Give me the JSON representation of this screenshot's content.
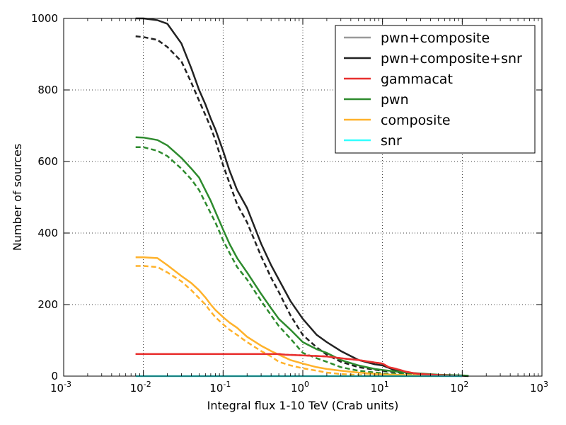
{
  "chart_data": {
    "type": "line",
    "xlabel": "Integral flux 1-10 TeV (Crab units)",
    "ylabel": "Number of sources",
    "xscale": "log",
    "xlim": [
      0.001,
      1000
    ],
    "ylim": [
      0,
      1000
    ],
    "xticks": [
      {
        "value": 0.001,
        "base": "10",
        "exp": "-3"
      },
      {
        "value": 0.01,
        "base": "10",
        "exp": "-2"
      },
      {
        "value": 0.1,
        "base": "10",
        "exp": "-1"
      },
      {
        "value": 1,
        "base": "10",
        "exp": "0"
      },
      {
        "value": 10,
        "base": "10",
        "exp": "1"
      },
      {
        "value": 100,
        "base": "10",
        "exp": "2"
      },
      {
        "value": 1000,
        "base": "10",
        "exp": "3"
      }
    ],
    "yticks": [
      "0",
      "200",
      "400",
      "600",
      "800",
      "1000"
    ],
    "grid": true,
    "legend_position": "top-right",
    "legend": [
      {
        "label": "pwn+composite",
        "color": "#999999"
      },
      {
        "label": "pwn+composite+snr",
        "color": "#222222"
      },
      {
        "label": "gammacat",
        "color": "#e8302f"
      },
      {
        "label": "pwn",
        "color": "#2e8b2e"
      },
      {
        "label": "composite",
        "color": "#ffb22b"
      },
      {
        "label": "snr",
        "color": "#33ffff"
      }
    ],
    "series": [
      {
        "name": "pwn+composite+snr",
        "style": "solid",
        "color": "#222222",
        "x": [
          0.008,
          0.01,
          0.015,
          0.02,
          0.03,
          0.04,
          0.05,
          0.06,
          0.07,
          0.08,
          0.1,
          0.12,
          0.15,
          0.2,
          0.3,
          0.4,
          0.5,
          0.7,
          1,
          1.5,
          2,
          3,
          5,
          8,
          10,
          15,
          20,
          30,
          50,
          80,
          100,
          120
        ],
        "y": [
          1000,
          1000,
          995,
          985,
          930,
          860,
          800,
          760,
          720,
          690,
          630,
          575,
          520,
          470,
          370,
          310,
          270,
          210,
          160,
          115,
          95,
          70,
          45,
          33,
          30,
          15,
          10,
          6,
          3,
          2,
          1,
          0
        ]
      },
      {
        "name": "pwn+composite+snr",
        "style": "dashed",
        "color": "#222222",
        "x": [
          0.008,
          0.01,
          0.015,
          0.02,
          0.03,
          0.04,
          0.05,
          0.06,
          0.07,
          0.08,
          0.1,
          0.12,
          0.15,
          0.2,
          0.3,
          0.4,
          0.5,
          0.7,
          1,
          1.5,
          2,
          3,
          5,
          8,
          10,
          20,
          50,
          100
        ],
        "y": [
          950,
          948,
          940,
          920,
          880,
          820,
          770,
          730,
          695,
          660,
          590,
          540,
          480,
          430,
          335,
          275,
          235,
          170,
          115,
          80,
          60,
          40,
          25,
          18,
          15,
          8,
          3,
          1
        ]
      },
      {
        "name": "pwn",
        "style": "solid",
        "color": "#2e8b2e",
        "x": [
          0.008,
          0.01,
          0.015,
          0.02,
          0.03,
          0.04,
          0.05,
          0.06,
          0.07,
          0.08,
          0.1,
          0.12,
          0.15,
          0.2,
          0.3,
          0.4,
          0.5,
          0.7,
          1,
          1.5,
          2,
          3,
          5,
          8,
          10,
          20,
          50,
          100,
          120
        ],
        "y": [
          668,
          667,
          660,
          645,
          610,
          580,
          555,
          520,
          490,
          460,
          410,
          370,
          330,
          290,
          230,
          190,
          160,
          130,
          95,
          75,
          65,
          45,
          30,
          20,
          17,
          10,
          4,
          2,
          1
        ]
      },
      {
        "name": "pwn",
        "style": "dashed",
        "color": "#2e8b2e",
        "x": [
          0.008,
          0.01,
          0.015,
          0.02,
          0.03,
          0.04,
          0.05,
          0.06,
          0.07,
          0.08,
          0.1,
          0.12,
          0.15,
          0.2,
          0.3,
          0.4,
          0.5,
          0.7,
          1,
          1.5,
          2,
          3,
          5,
          10,
          20,
          50,
          100
        ],
        "y": [
          640,
          640,
          630,
          615,
          580,
          550,
          520,
          485,
          455,
          430,
          380,
          345,
          305,
          270,
          210,
          170,
          140,
          105,
          65,
          50,
          40,
          25,
          15,
          8,
          5,
          2,
          1
        ]
      },
      {
        "name": "composite",
        "style": "solid",
        "color": "#ffb22b",
        "x": [
          0.008,
          0.01,
          0.015,
          0.02,
          0.03,
          0.04,
          0.05,
          0.06,
          0.07,
          0.08,
          0.1,
          0.12,
          0.15,
          0.2,
          0.3,
          0.4,
          0.5,
          0.7,
          1,
          1.5,
          2,
          3,
          5,
          10,
          20,
          50,
          100
        ],
        "y": [
          332,
          332,
          330,
          310,
          280,
          260,
          240,
          220,
          200,
          185,
          165,
          150,
          135,
          110,
          85,
          70,
          60,
          45,
          35,
          25,
          20,
          15,
          10,
          5,
          3,
          1,
          0
        ]
      },
      {
        "name": "composite",
        "style": "dashed",
        "color": "#ffb22b",
        "x": [
          0.008,
          0.01,
          0.015,
          0.02,
          0.03,
          0.04,
          0.05,
          0.06,
          0.07,
          0.08,
          0.1,
          0.12,
          0.15,
          0.2,
          0.3,
          0.4,
          0.5,
          0.7,
          1,
          1.5,
          2,
          3,
          5,
          10,
          20,
          50
        ],
        "y": [
          308,
          308,
          305,
          290,
          265,
          240,
          218,
          200,
          180,
          165,
          145,
          130,
          115,
          95,
          70,
          55,
          40,
          30,
          22,
          15,
          10,
          6,
          3,
          1,
          0,
          0
        ]
      },
      {
        "name": "gammacat",
        "style": "solid",
        "color": "#e8302f",
        "x": [
          0.008,
          0.01,
          0.1,
          0.5,
          0.6,
          1,
          2,
          3,
          5,
          7,
          10,
          12,
          15,
          20,
          25,
          30,
          50,
          80,
          100
        ],
        "y": [
          62,
          62,
          62,
          62,
          60,
          58,
          55,
          50,
          45,
          40,
          35,
          25,
          20,
          12,
          8,
          6,
          3,
          1,
          0
        ]
      },
      {
        "name": "gammacat",
        "style": "dashed",
        "color": "#e8302f",
        "x": [
          0.008,
          0.01,
          0.1,
          0.5,
          0.6,
          1,
          2,
          3,
          5,
          7,
          10,
          12,
          15,
          20,
          25,
          30,
          50,
          80,
          100
        ],
        "y": [
          62,
          62,
          62,
          62,
          60,
          58,
          55,
          50,
          45,
          40,
          35,
          25,
          20,
          12,
          8,
          6,
          3,
          1,
          0
        ]
      },
      {
        "name": "snr",
        "style": "solid",
        "color": "#33ffff",
        "x": [
          0.008,
          0.1,
          1,
          10,
          100
        ],
        "y": [
          0,
          0,
          0,
          0,
          0
        ]
      }
    ]
  }
}
